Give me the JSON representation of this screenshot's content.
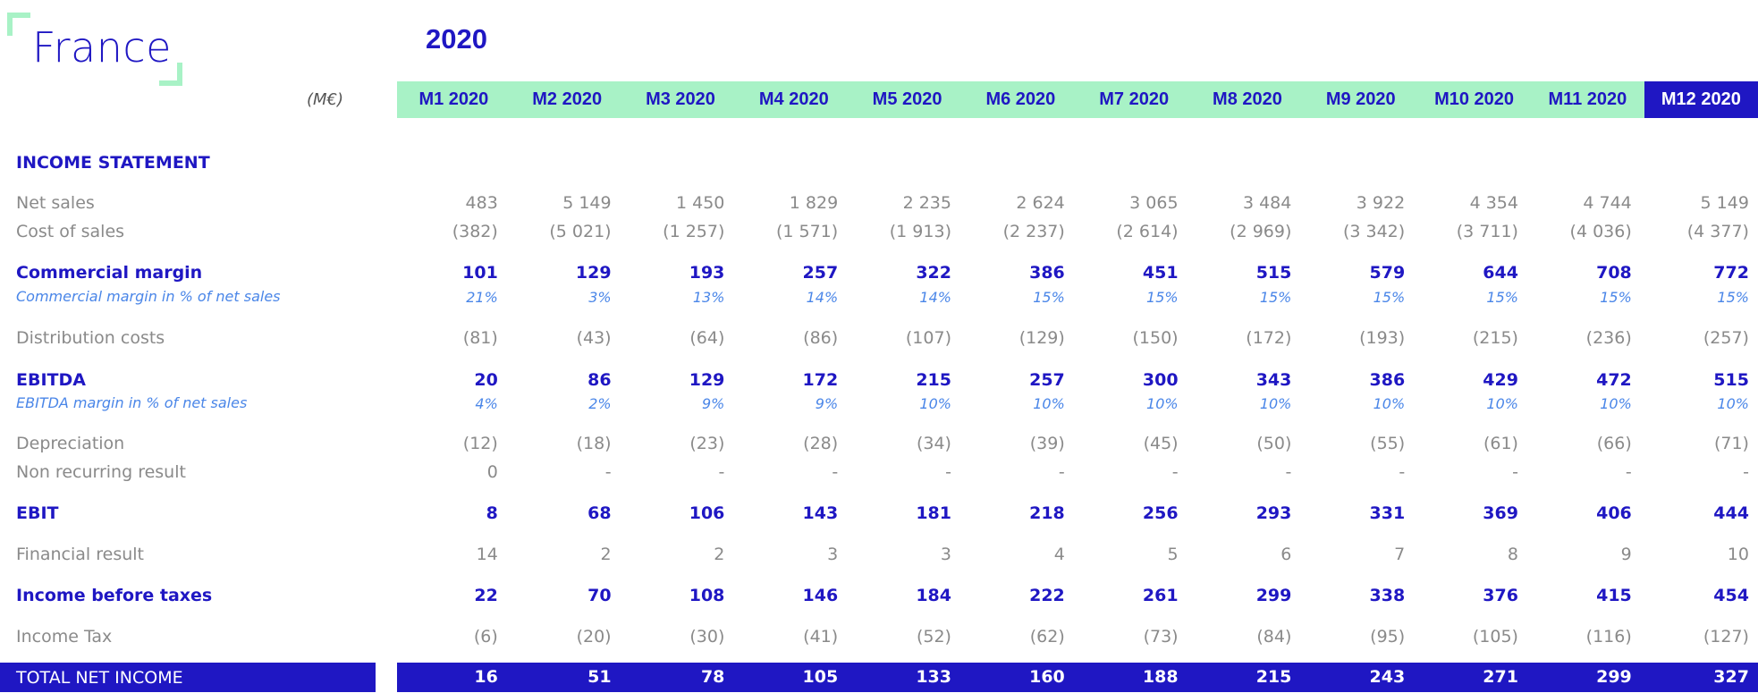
{
  "title": "France",
  "year": "2020",
  "unit": "(M€)",
  "months": [
    "M1 2020",
    "M2 2020",
    "M3 2020",
    "M4 2020",
    "M5 2020",
    "M6 2020",
    "M7 2020",
    "M8 2020",
    "M9 2020",
    "M10 2020",
    "M11 2020",
    "M12 2020"
  ],
  "active_month": "M12 2020",
  "section_title": "INCOME STATEMENT",
  "rows": {
    "net_sales": {
      "label": "Net sales",
      "values": [
        "483",
        "5 149",
        "1 450",
        "1 829",
        "2 235",
        "2 624",
        "3 065",
        "3 484",
        "3 922",
        "4 354",
        "4 744",
        "5 149"
      ]
    },
    "cost_of_sales": {
      "label": "Cost of sales",
      "values": [
        "(382)",
        "(5 021)",
        "(1 257)",
        "(1 571)",
        "(1 913)",
        "(2 237)",
        "(2 614)",
        "(2 969)",
        "(3 342)",
        "(3 711)",
        "(4 036)",
        "(4 377)"
      ]
    },
    "commercial_margin": {
      "label": "Commercial margin",
      "values": [
        "101",
        "129",
        "193",
        "257",
        "322",
        "386",
        "451",
        "515",
        "579",
        "644",
        "708",
        "772"
      ]
    },
    "commercial_margin_pct": {
      "label": "Commercial margin in % of net sales",
      "values": [
        "21%",
        "3%",
        "13%",
        "14%",
        "14%",
        "15%",
        "15%",
        "15%",
        "15%",
        "15%",
        "15%",
        "15%"
      ]
    },
    "distribution_costs": {
      "label": "Distribution costs",
      "values": [
        "(81)",
        "(43)",
        "(64)",
        "(86)",
        "(107)",
        "(129)",
        "(150)",
        "(172)",
        "(193)",
        "(215)",
        "(236)",
        "(257)"
      ]
    },
    "ebitda": {
      "label": "EBITDA",
      "values": [
        "20",
        "86",
        "129",
        "172",
        "215",
        "257",
        "300",
        "343",
        "386",
        "429",
        "472",
        "515"
      ]
    },
    "ebitda_pct": {
      "label": "EBITDA margin in % of net sales",
      "values": [
        "4%",
        "2%",
        "9%",
        "9%",
        "10%",
        "10%",
        "10%",
        "10%",
        "10%",
        "10%",
        "10%",
        "10%"
      ]
    },
    "depreciation": {
      "label": "Depreciation",
      "values": [
        "(12)",
        "(18)",
        "(23)",
        "(28)",
        "(34)",
        "(39)",
        "(45)",
        "(50)",
        "(55)",
        "(61)",
        "(66)",
        "(71)"
      ]
    },
    "non_recurring": {
      "label": "Non recurring result",
      "values": [
        "0",
        "-",
        "-",
        "-",
        "-",
        "-",
        "-",
        "-",
        "-",
        "-",
        "-",
        "-"
      ]
    },
    "ebit": {
      "label": "EBIT",
      "values": [
        "8",
        "68",
        "106",
        "143",
        "181",
        "218",
        "256",
        "293",
        "331",
        "369",
        "406",
        "444"
      ]
    },
    "financial_result": {
      "label": "Financial result",
      "values": [
        "14",
        "2",
        "2",
        "3",
        "3",
        "4",
        "5",
        "6",
        "7",
        "8",
        "9",
        "10"
      ]
    },
    "income_before_taxes": {
      "label": "Income before taxes",
      "values": [
        "22",
        "70",
        "108",
        "146",
        "184",
        "222",
        "261",
        "299",
        "338",
        "376",
        "415",
        "454"
      ]
    },
    "income_tax": {
      "label": "Income Tax",
      "values": [
        "(6)",
        "(20)",
        "(30)",
        "(41)",
        "(52)",
        "(62)",
        "(73)",
        "(84)",
        "(95)",
        "(105)",
        "(116)",
        "(127)"
      ]
    },
    "total_net_income": {
      "label": "TOTAL NET INCOME",
      "values": [
        "16",
        "51",
        "78",
        "105",
        "133",
        "160",
        "188",
        "215",
        "243",
        "271",
        "299",
        "327"
      ]
    }
  },
  "colors": {
    "accent": "#1f17c3",
    "header_bg": "#a8f2c6",
    "muted": "#8a8a8a",
    "pct": "#4a86e8"
  }
}
